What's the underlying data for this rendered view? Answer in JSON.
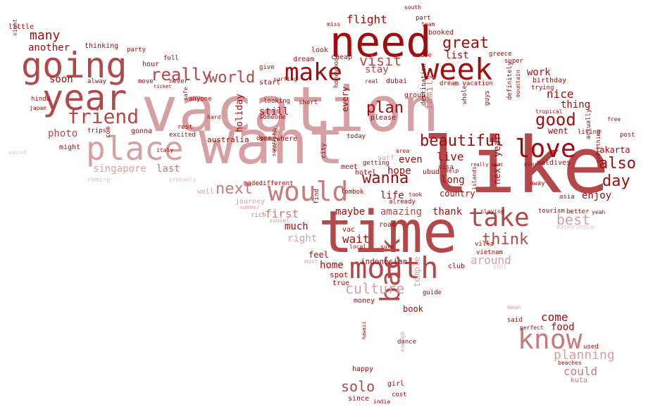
{
  "palette": [
    "#a30c0c",
    "#b4474a",
    "#c67b7c",
    "#d6a0a2",
    "#e4c1c2"
  ],
  "words": [
    {
      "text": "vacation",
      "tone": 3
    },
    {
      "text": "like",
      "tone": 1
    },
    {
      "text": "want",
      "tone": 3
    },
    {
      "text": "time",
      "tone": 1
    },
    {
      "text": "going",
      "tone": 1
    },
    {
      "text": "need",
      "tone": 0
    },
    {
      "text": "year",
      "tone": 1
    },
    {
      "text": "week",
      "tone": 0
    },
    {
      "text": "place",
      "tone": 3
    },
    {
      "text": "would",
      "tone": 2
    },
    {
      "text": "make",
      "tone": 0
    },
    {
      "text": "month",
      "tone": 1
    },
    {
      "text": "back",
      "tone": 1
    },
    {
      "text": "know",
      "tone": 2
    },
    {
      "text": "take",
      "tone": 1
    },
    {
      "text": "love",
      "tone": 0
    },
    {
      "text": "friend",
      "tone": 1
    },
    {
      "text": "really",
      "tone": 1
    },
    {
      "text": "world",
      "tone": 1
    },
    {
      "text": "visit",
      "tone": 1
    },
    {
      "text": "great",
      "tone": 0
    },
    {
      "text": "good",
      "tone": 0
    },
    {
      "text": "beautiful",
      "tone": 0
    },
    {
      "text": "plan",
      "tone": 0
    },
    {
      "text": "wanna",
      "tone": 0
    },
    {
      "text": "also",
      "tone": 0
    },
    {
      "text": "day",
      "tone": 0
    },
    {
      "text": "next",
      "tone": 2
    },
    {
      "text": "think",
      "tone": 1
    },
    {
      "text": "best",
      "tone": 3
    },
    {
      "text": "culture",
      "tone": 3
    },
    {
      "text": "solo",
      "tone": 1
    },
    {
      "text": "planning",
      "tone": 3
    },
    {
      "text": "many",
      "tone": 0
    },
    {
      "text": "soon",
      "tone": 0
    },
    {
      "text": "flight",
      "tone": 0
    },
    {
      "text": "stay",
      "tone": 1
    },
    {
      "text": "list",
      "tone": 0
    },
    {
      "text": "work",
      "tone": 0
    },
    {
      "text": "nice",
      "tone": 0
    },
    {
      "text": "thing",
      "tone": 0
    },
    {
      "text": "enjoy",
      "tone": 0
    },
    {
      "text": "photo",
      "tone": 1
    },
    {
      "text": "singapore",
      "tone": 3
    },
    {
      "text": "last",
      "tone": 2
    },
    {
      "text": "live",
      "tone": 0
    },
    {
      "text": "first",
      "tone": 2
    },
    {
      "text": "much",
      "tone": 0
    },
    {
      "text": "right",
      "tone": 3
    },
    {
      "text": "wait",
      "tone": 0
    },
    {
      "text": "even",
      "tone": 0
    },
    {
      "text": "hope",
      "tone": 0
    },
    {
      "text": "life",
      "tone": 0
    },
    {
      "text": "long",
      "tone": 0
    },
    {
      "text": "maybe",
      "tone": 0
    },
    {
      "text": "amazing",
      "tone": 1
    },
    {
      "text": "thank",
      "tone": 0
    },
    {
      "text": "around",
      "tone": 3
    },
    {
      "text": "come",
      "tone": 0
    },
    {
      "text": "food",
      "tone": 0
    },
    {
      "text": "could",
      "tone": 2
    },
    {
      "text": "home",
      "tone": 0
    },
    {
      "text": "still",
      "tone": 0
    },
    {
      "text": "another",
      "tone": 0
    },
    {
      "text": "holiday",
      "tone": 0
    },
    {
      "text": "every",
      "tone": 0
    },
    {
      "text": "family",
      "tone": 2
    },
    {
      "text": "went",
      "tone": 0
    },
    {
      "text": "book",
      "tone": 0
    },
    {
      "text": "temple",
      "tone": 3
    },
    {
      "text": "next year",
      "tone": 0
    },
    {
      "text": "hour",
      "tone": 0
    },
    {
      "text": "dubai",
      "tone": 0
    },
    {
      "text": "australia",
      "tone": 0
    },
    {
      "text": "jakarta",
      "tone": 0
    },
    {
      "text": "country",
      "tone": 0
    },
    {
      "text": "indonesian",
      "tone": 0
    },
    {
      "text": "club",
      "tone": 0
    },
    {
      "text": "feel",
      "tone": 0
    },
    {
      "text": "spot",
      "tone": 0
    },
    {
      "text": "money",
      "tone": 0
    },
    {
      "text": "little",
      "tone": 0
    },
    {
      "text": "thinking",
      "tone": 0
    },
    {
      "text": "party",
      "tone": 0
    },
    {
      "text": "full",
      "tone": 0
    },
    {
      "text": "gonna",
      "tone": 0
    },
    {
      "text": "might",
      "tone": 0
    },
    {
      "text": "trips",
      "tone": 0
    },
    {
      "text": "excited",
      "tone": 0
    },
    {
      "text": "somewhere",
      "tone": 0
    },
    {
      "text": "done",
      "tone": 0
    },
    {
      "text": "meet",
      "tone": 0
    },
    {
      "text": "hotel",
      "tone": 0
    },
    {
      "text": "ubud",
      "tone": 0
    },
    {
      "text": "maldives",
      "tone": 0
    },
    {
      "text": "asia",
      "tone": 0
    },
    {
      "text": "booked",
      "tone": 0
    },
    {
      "text": "look",
      "tone": 0
    },
    {
      "text": "dream",
      "tone": 0
    },
    {
      "text": "cheap",
      "tone": 0
    },
    {
      "text": "house",
      "tone": 0
    },
    {
      "text": "group",
      "tone": 0
    },
    {
      "text": "please",
      "tone": 0
    },
    {
      "text": "birthday",
      "tone": 0
    },
    {
      "text": "dream vacation",
      "tone": 0
    },
    {
      "text": "super",
      "tone": 0
    },
    {
      "text": "greece",
      "tone": 0
    },
    {
      "text": "trying",
      "tone": 0
    },
    {
      "text": "tropical",
      "tone": 0
    },
    {
      "text": "living",
      "tone": 0
    },
    {
      "text": "free",
      "tone": 0
    },
    {
      "text": "post",
      "tone": 0
    },
    {
      "text": "yeah",
      "tone": 0
    },
    {
      "text": "better",
      "tone": 0
    },
    {
      "text": "tourism",
      "tone": 0
    },
    {
      "text": "playing",
      "tone": 0
    },
    {
      "text": "experience",
      "tone": 4
    },
    {
      "text": "vietnam",
      "tone": 0
    },
    {
      "text": "villa",
      "tone": 0
    },
    {
      "text": "cool",
      "tone": 4
    },
    {
      "text": "mean",
      "tone": 3
    },
    {
      "text": "said",
      "tone": 0
    },
    {
      "text": "perfect",
      "tone": 0
    },
    {
      "text": "used",
      "tone": 0
    },
    {
      "text": "beaches",
      "tone": 0
    },
    {
      "text": "kuta",
      "tone": 2
    },
    {
      "text": "happy",
      "tone": 0
    },
    {
      "text": "girl",
      "tone": 0
    },
    {
      "text": "since",
      "tone": 0
    },
    {
      "text": "cost",
      "tone": 0
    },
    {
      "text": "india",
      "tone": 0
    },
    {
      "text": "dance",
      "tone": 0
    },
    {
      "text": "guide",
      "tone": 0
    },
    {
      "text": "enough",
      "tone": 3
    },
    {
      "text": "hawaii",
      "tone": 0
    },
    {
      "text": "true",
      "tone": 0
    },
    {
      "text": "must",
      "tone": 3
    },
    {
      "text": "local",
      "tone": 0
    },
    {
      "text": "sure",
      "tone": 0
    },
    {
      "text": "vac",
      "tone": 0
    },
    {
      "text": "road",
      "tone": 0
    },
    {
      "text": "find",
      "tone": 0
    },
    {
      "text": "rich",
      "tone": 2
    },
    {
      "text": "sunset",
      "tone": 3
    },
    {
      "text": "summer",
      "tone": 3
    },
    {
      "text": "journey",
      "tone": 3
    },
    {
      "text": "well",
      "tone": 3
    },
    {
      "text": "probably",
      "tone": 4
    },
    {
      "text": "coming",
      "tone": 4
    },
    {
      "text": "wanted",
      "tone": 4
    },
    {
      "text": "italy",
      "tone": 0
    },
    {
      "text": "com",
      "tone": 0
    },
    {
      "text": "rest",
      "tone": 0
    },
    {
      "text": "safe",
      "tone": 0
    },
    {
      "text": "hard",
      "tone": 0
    },
    {
      "text": "anyone",
      "tone": 0
    },
    {
      "text": "someone",
      "tone": 0
    },
    {
      "text": "short",
      "tone": 0
    },
    {
      "text": "looking",
      "tone": 0
    },
    {
      "text": "start",
      "tone": 0
    },
    {
      "text": "surfing",
      "tone": 0
    },
    {
      "text": "give",
      "tone": 0
    },
    {
      "text": "never",
      "tone": 0
    },
    {
      "text": "move",
      "tone": 0
    },
    {
      "text": "ticket",
      "tone": 0
    },
    {
      "text": "alway",
      "tone": 0
    },
    {
      "text": "hindu",
      "tone": 0
    },
    {
      "text": "japan",
      "tone": 0
    },
    {
      "text": "night",
      "tone": 0
    },
    {
      "text": "madedifferent",
      "tone": 0
    },
    {
      "text": "surf",
      "tone": 3
    },
    {
      "text": "getting",
      "tone": 0
    },
    {
      "text": "lombok",
      "tone": 0
    },
    {
      "text": "today",
      "tone": 0
    },
    {
      "text": "city",
      "tone": 0
    },
    {
      "text": "honeymoon",
      "tone": 0
    },
    {
      "text": "real",
      "tone": 0
    },
    {
      "text": "destination",
      "tone": 0
    },
    {
      "text": "whole",
      "tone": 0
    },
    {
      "text": "guys",
      "tone": 0
    },
    {
      "text": "definitely",
      "tone": 0
    },
    {
      "text": "islands",
      "tone": 0
    },
    {
      "text": "mountain",
      "tone": 0
    },
    {
      "text": "actually",
      "tone": 0
    },
    {
      "text": "everything",
      "tone": 0
    },
    {
      "text": "ever",
      "tone": 0
    },
    {
      "text": "away",
      "tone": 0
    },
    {
      "text": "visa",
      "tone": 0
    },
    {
      "text": "help",
      "tone": 0
    },
    {
      "text": "took",
      "tone": 0
    },
    {
      "text": "already",
      "tone": 0
    },
    {
      "text": "area",
      "tone": 0
    },
    {
      "text": "really want",
      "tone": 0
    },
    {
      "text": "south",
      "tone": 0
    },
    {
      "text": "miss",
      "tone": 0
    },
    {
      "text": "part",
      "tone": 0
    },
    {
      "text": "team",
      "tone": 0
    },
    {
      "text": "something",
      "tone": 0
    },
    {
      "text": "everyday",
      "tone": 0
    }
  ]
}
